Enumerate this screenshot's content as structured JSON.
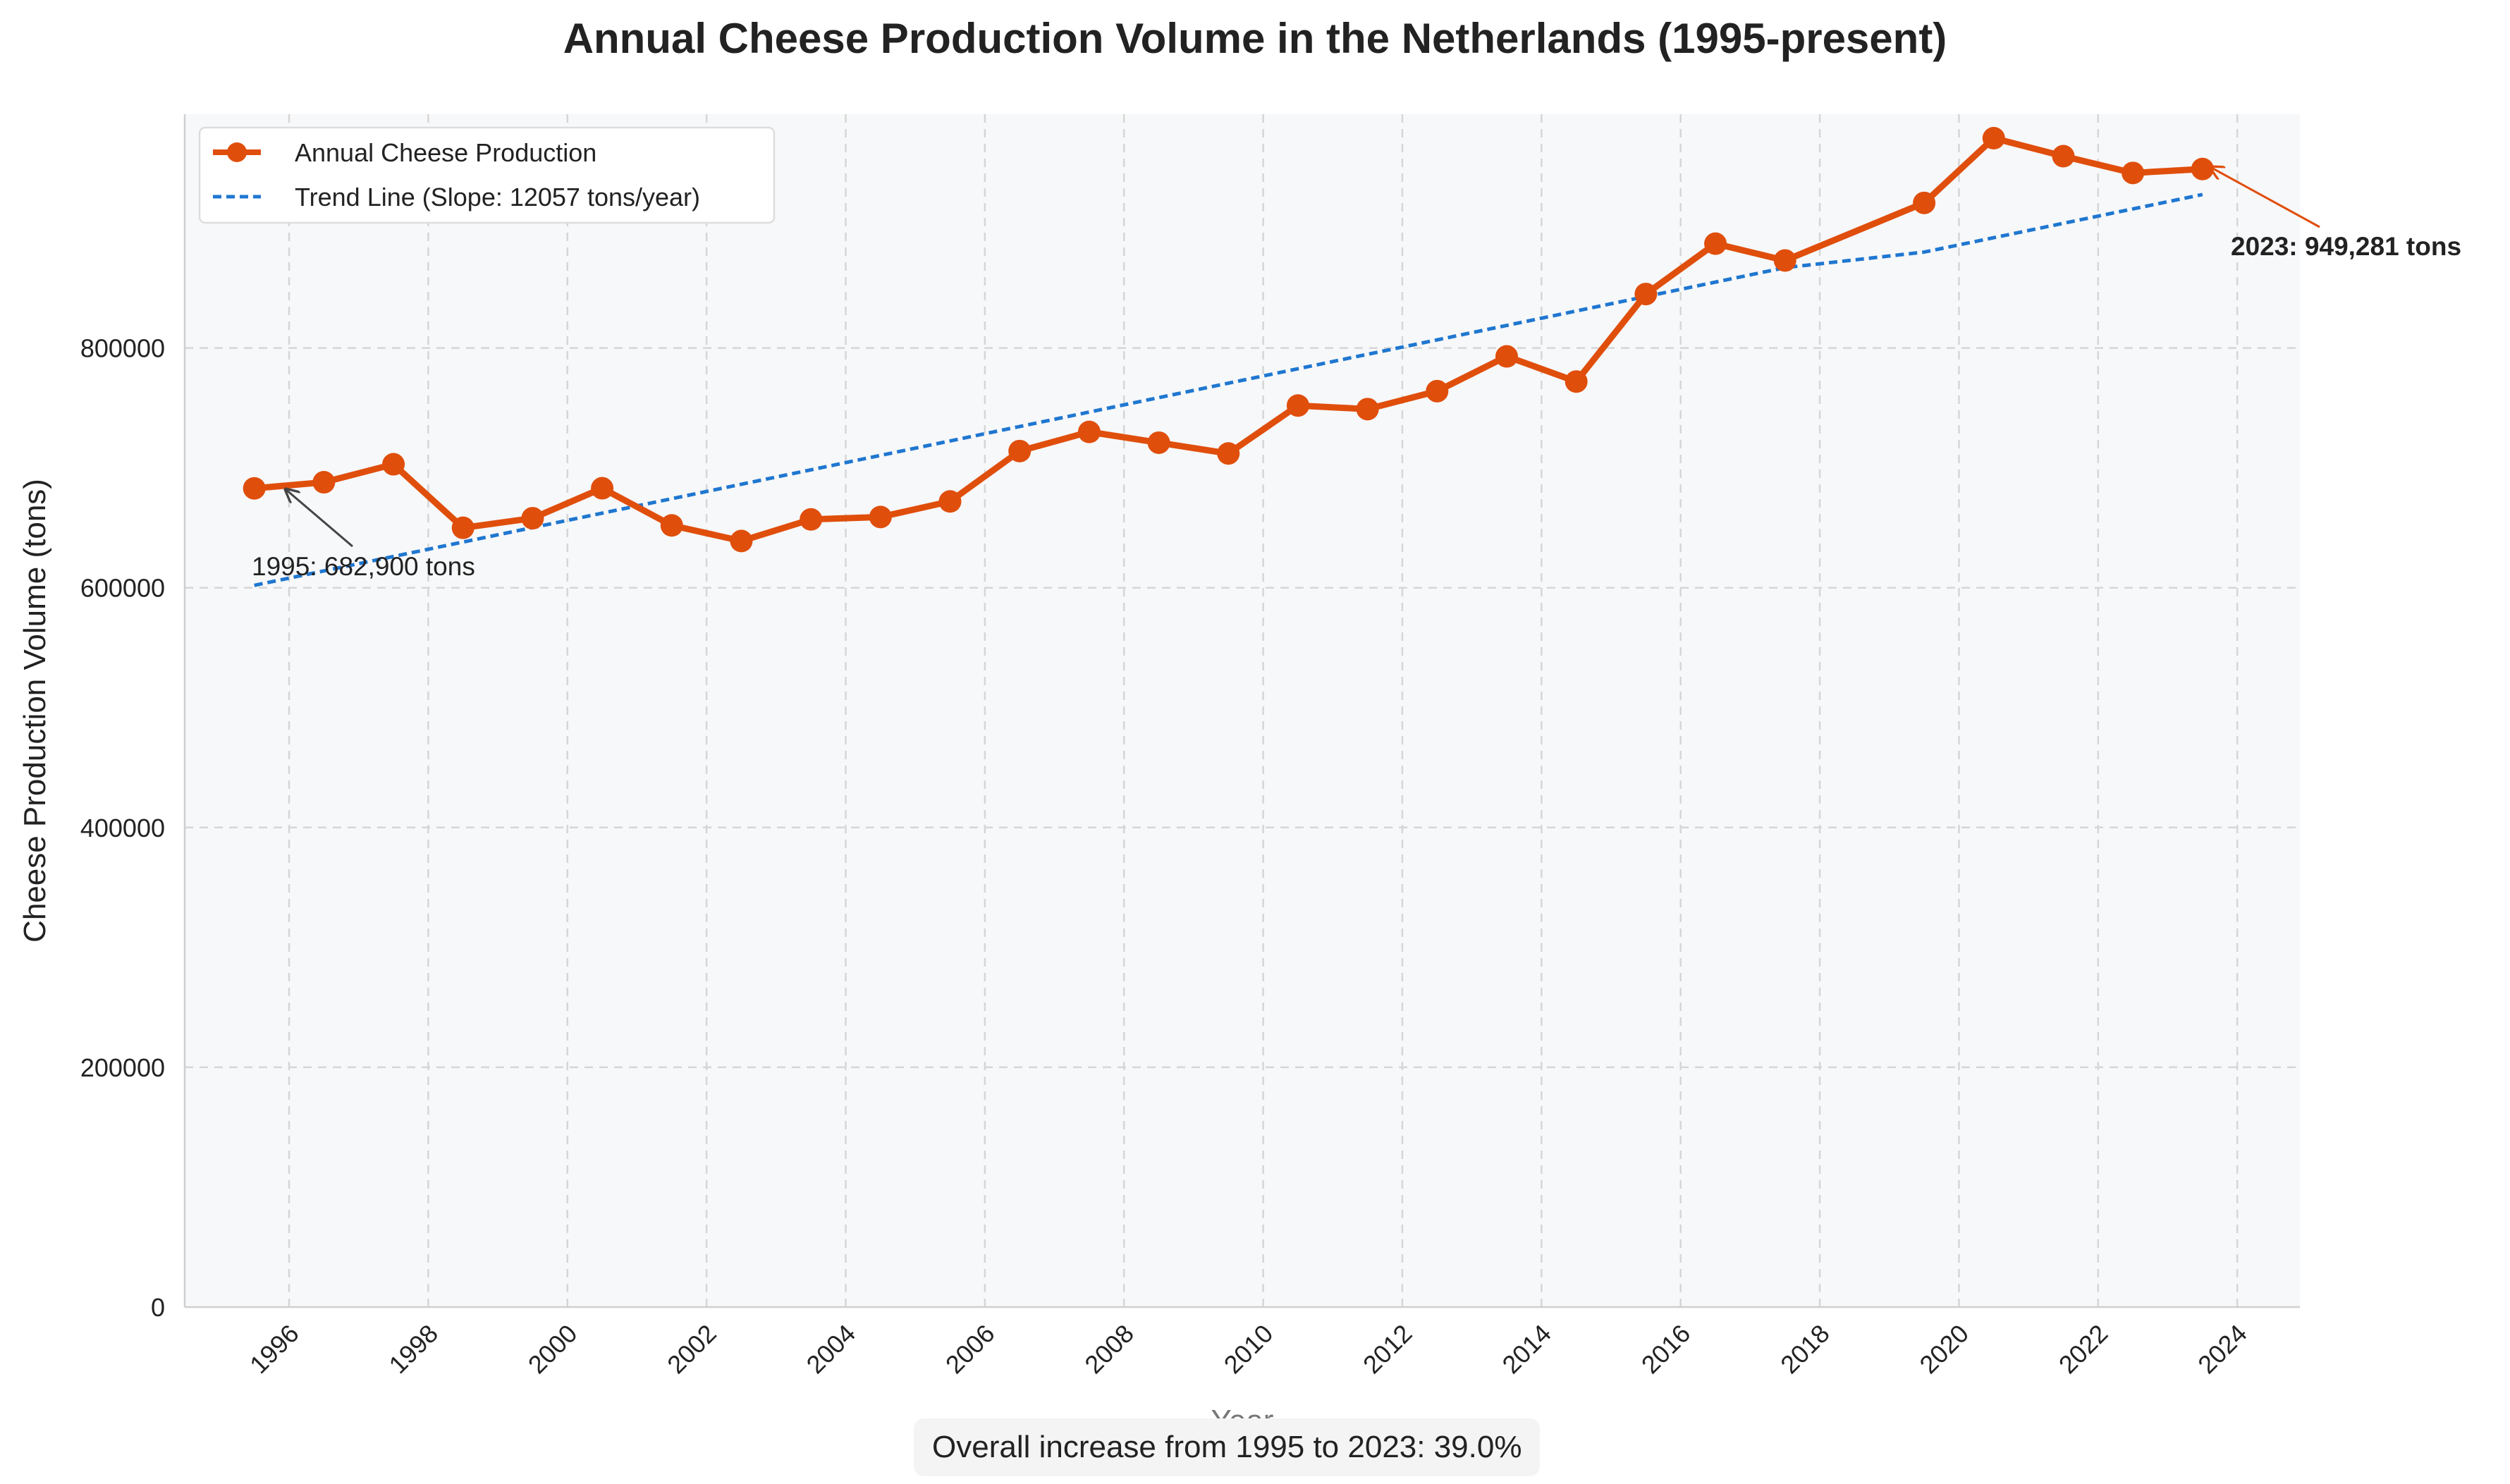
{
  "chart_data": {
    "type": "line",
    "title": "Annual Cheese Production Volume in the Netherlands (1995-present)",
    "xlabel": "Year",
    "ylabel": "Cheese Production Volume (tons)",
    "xlim": [
      1994.5,
      2024.9
    ],
    "ylim": [
      0,
      995000
    ],
    "x_ticks": [
      1996,
      1998,
      2000,
      2002,
      2004,
      2006,
      2008,
      2010,
      2012,
      2014,
      2016,
      2018,
      2020,
      2022,
      2024
    ],
    "y_ticks": [
      0,
      200000,
      400000,
      600000,
      800000
    ],
    "grid": true,
    "legend_position": "upper left",
    "colors": {
      "production": "#e04e0c",
      "trend": "#1f77d0",
      "background": "#f7f8f9"
    },
    "series": [
      {
        "name": "Annual Cheese Production",
        "x": [
          1995.5,
          1996.5,
          1997.5,
          1998.5,
          1999.5,
          2000.5,
          2001.5,
          2002.5,
          2003.5,
          2004.5,
          2005.5,
          2006.5,
          2007.5,
          2008.5,
          2009.5,
          2010.5,
          2011.5,
          2012.5,
          2013.5,
          2014.5,
          2015.5,
          2016.5,
          2017.5,
          2019.5,
          2020.5,
          2021.5,
          2022.5,
          2023.5
        ],
        "y": [
          682900,
          688000,
          703000,
          650000,
          658000,
          683000,
          652000,
          639000,
          657000,
          659000,
          672000,
          714000,
          730000,
          721000,
          712000,
          752000,
          749000,
          764000,
          793000,
          772000,
          845000,
          887000,
          873000,
          921000,
          975000,
          960000,
          946000,
          949281
        ]
      },
      {
        "name": "Trend Line (Slope: 12057 tons/year)",
        "x": [
          1995.5,
          2017.5,
          2019.5,
          2023.5
        ],
        "y": [
          602000,
          867000,
          880000,
          928000
        ]
      }
    ],
    "annotations": [
      {
        "text": "1995: 682,900 tons",
        "x": 1995.5,
        "y": 682900
      },
      {
        "text": "2023: 949,281 tons",
        "x": 2023.5,
        "y": 949281
      }
    ]
  },
  "footer_note": "Overall increase from 1995 to 2023: 39.0%"
}
